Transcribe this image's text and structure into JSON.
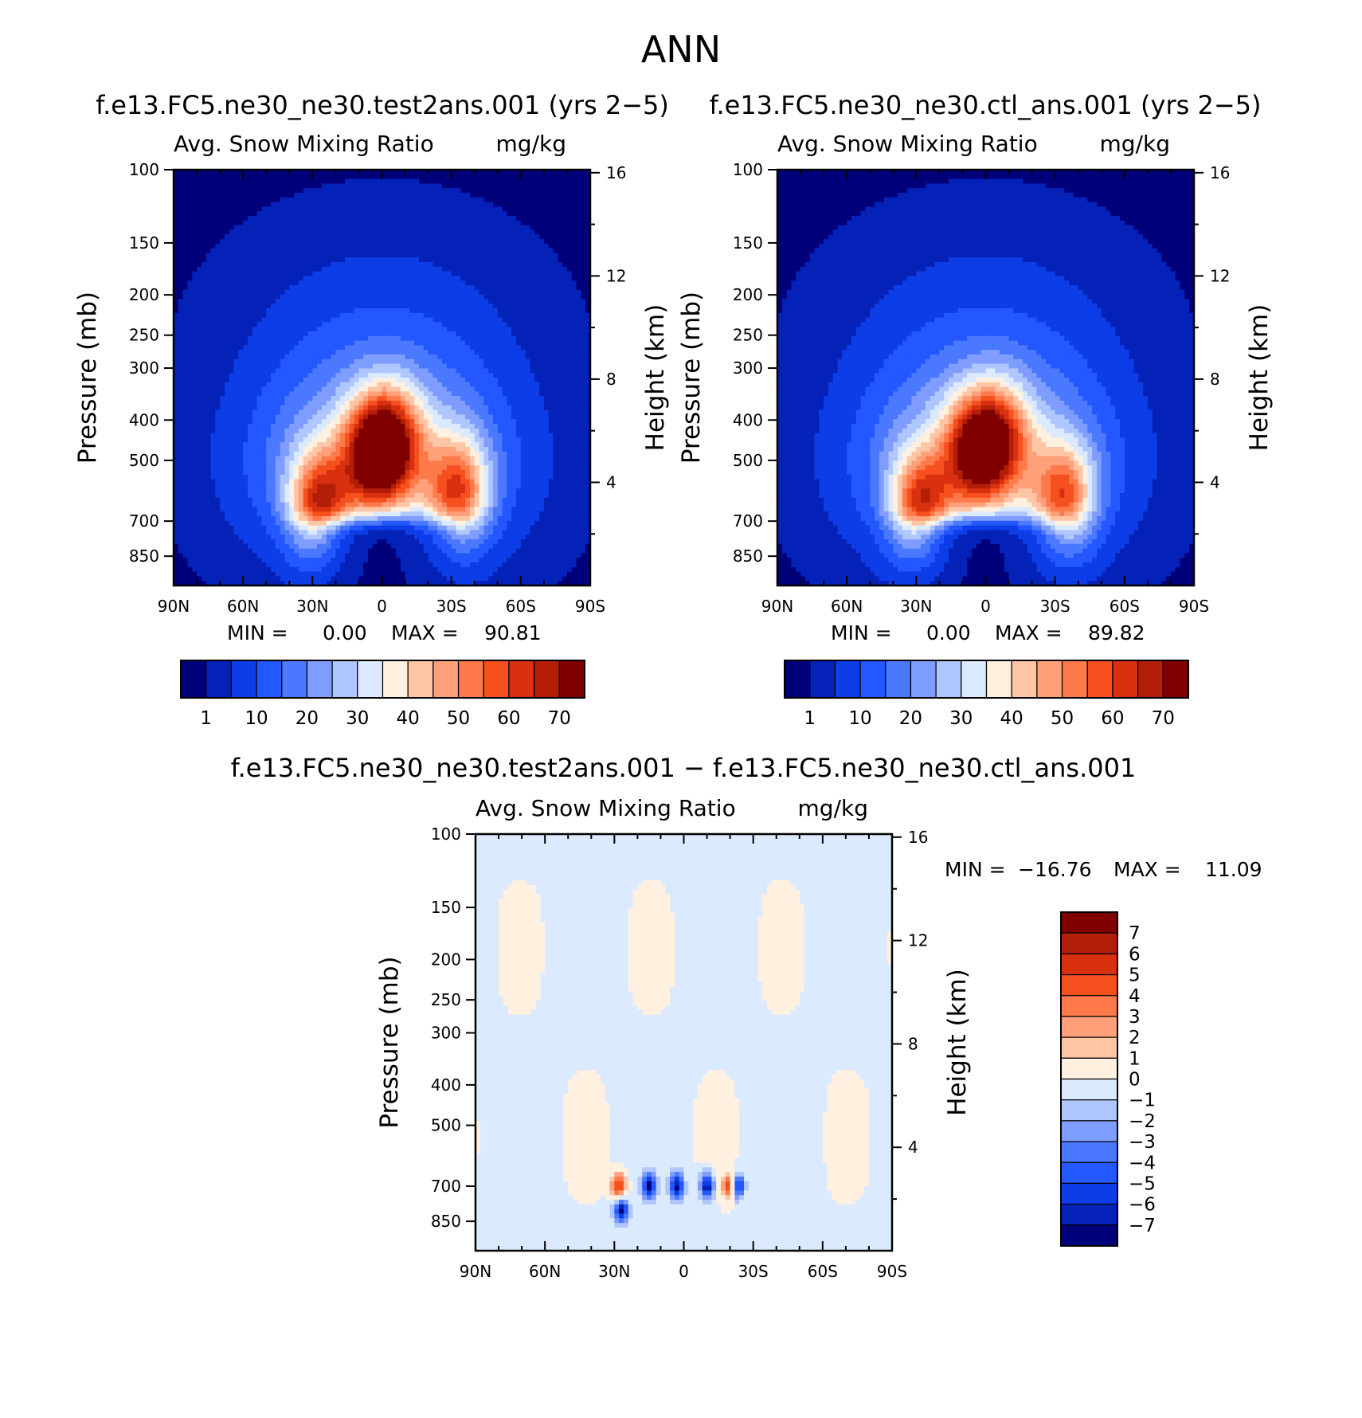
{
  "page_title": "ANN",
  "chart_data": [
    {
      "type": "heatmap",
      "title": "f.e13.FC5.ne30_ne30.test2ans.001 (yrs 2−5)",
      "subtitle_left": "Avg. Snow Mixing Ratio",
      "subtitle_right": "mg/kg",
      "ylabel": "Pressure (mb)",
      "y2label": "Height (km)",
      "x_ticks": [
        "90N",
        "60N",
        "30N",
        "0",
        "30S",
        "60S",
        "90S"
      ],
      "x_range": [
        -90,
        90
      ],
      "y_ticks": [
        100,
        150,
        200,
        250,
        300,
        400,
        500,
        700,
        850
      ],
      "y_range": [
        100,
        1000
      ],
      "y_scale": "log",
      "y2_ticks": [
        16,
        12,
        8,
        4
      ],
      "stats": {
        "min_label": "MIN =",
        "min": "0.00",
        "max_label": "MAX =",
        "max": "90.81"
      },
      "colorbar_labels": [
        "1",
        "10",
        "20",
        "30",
        "40",
        "50",
        "60",
        "70"
      ],
      "colorbar_colors": [
        "#00007a",
        "#0522b8",
        "#0c3de6",
        "#2357ff",
        "#4a78ff",
        "#7f9dff",
        "#afc6ff",
        "#dceaff",
        "#fff0e0",
        "#ffc6a6",
        "#ffa07a",
        "#ff7a4a",
        "#f5501e",
        "#d93010",
        "#b31e08",
        "#800000"
      ],
      "features": [
        {
          "lat": -27,
          "p": 650,
          "v": 80
        },
        {
          "lat": 33,
          "p": 600,
          "v": 75
        },
        {
          "lat": -4,
          "p": 480,
          "v": 76
        },
        {
          "lat": 5,
          "p": 450,
          "v": 68
        }
      ]
    },
    {
      "type": "heatmap",
      "title": "f.e13.FC5.ne30_ne30.ctl_ans.001 (yrs 2−5)",
      "subtitle_left": "Avg. Snow Mixing Ratio",
      "subtitle_right": "mg/kg",
      "ylabel": "Pressure (mb)",
      "y2label": "Height (km)",
      "x_ticks": [
        "90N",
        "60N",
        "30N",
        "0",
        "30S",
        "60S",
        "90S"
      ],
      "x_range": [
        -90,
        90
      ],
      "y_ticks": [
        100,
        150,
        200,
        250,
        300,
        400,
        500,
        700,
        850
      ],
      "y_range": [
        100,
        1000
      ],
      "y_scale": "log",
      "y2_ticks": [
        16,
        12,
        8,
        4
      ],
      "stats": {
        "min_label": "MIN =",
        "min": "0.00",
        "max_label": "MAX =",
        "max": "89.82"
      },
      "colorbar_labels": [
        "1",
        "10",
        "20",
        "30",
        "40",
        "50",
        "60",
        "70"
      ],
      "colorbar_colors": [
        "#00007a",
        "#0522b8",
        "#0c3de6",
        "#2357ff",
        "#4a78ff",
        "#7f9dff",
        "#afc6ff",
        "#dceaff",
        "#fff0e0",
        "#ffc6a6",
        "#ffa07a",
        "#ff7a4a",
        "#f5501e",
        "#d93010",
        "#b31e08",
        "#800000"
      ],
      "features": [
        {
          "lat": -28,
          "p": 650,
          "v": 78
        },
        {
          "lat": 34,
          "p": 620,
          "v": 74
        },
        {
          "lat": -5,
          "p": 470,
          "v": 75
        },
        {
          "lat": 6,
          "p": 440,
          "v": 66
        }
      ]
    },
    {
      "type": "heatmap",
      "title": "f.e13.FC5.ne30_ne30.test2ans.001 − f.e13.FC5.ne30_ne30.ctl_ans.001",
      "subtitle_left": "Avg. Snow Mixing Ratio",
      "subtitle_right": "mg/kg",
      "ylabel": "Pressure (mb)",
      "y2label": "Height (km)",
      "x_ticks": [
        "90N",
        "60N",
        "30N",
        "0",
        "30S",
        "60S",
        "90S"
      ],
      "x_range": [
        -90,
        90
      ],
      "y_ticks": [
        100,
        150,
        200,
        250,
        300,
        400,
        500,
        700,
        850
      ],
      "y_range": [
        100,
        1000
      ],
      "y_scale": "log",
      "y2_ticks": [
        16,
        12,
        8,
        4
      ],
      "stats": {
        "min_label": "MIN =",
        "min": "−16.76",
        "max_label": "MAX =",
        "max": "11.09"
      },
      "colorbar_labels": [
        "7",
        "6",
        "5",
        "4",
        "3",
        "2",
        "1",
        "0",
        "−1",
        "−2",
        "−3",
        "−4",
        "−5",
        "−6",
        "−7"
      ],
      "colorbar_colors": [
        "#800000",
        "#b31e08",
        "#d93010",
        "#f5501e",
        "#ff7a4a",
        "#ffa07a",
        "#ffc6a6",
        "#fff0e0",
        "#dceaff",
        "#afc6ff",
        "#7f9dff",
        "#4a78ff",
        "#2357ff",
        "#0c3de6",
        "#0522b8",
        "#00007a"
      ],
      "features": [
        {
          "lat": -3,
          "p": 700,
          "v": -7
        },
        {
          "lat": 10,
          "p": 700,
          "v": -7
        },
        {
          "lat": 23,
          "p": 700,
          "v": -7
        },
        {
          "lat": -15,
          "p": 700,
          "v": -7
        },
        {
          "lat": -27,
          "p": 800,
          "v": -7
        },
        {
          "lat": 20,
          "p": 700,
          "v": 6
        },
        {
          "lat": -28,
          "p": 700,
          "v": 6
        }
      ]
    }
  ]
}
